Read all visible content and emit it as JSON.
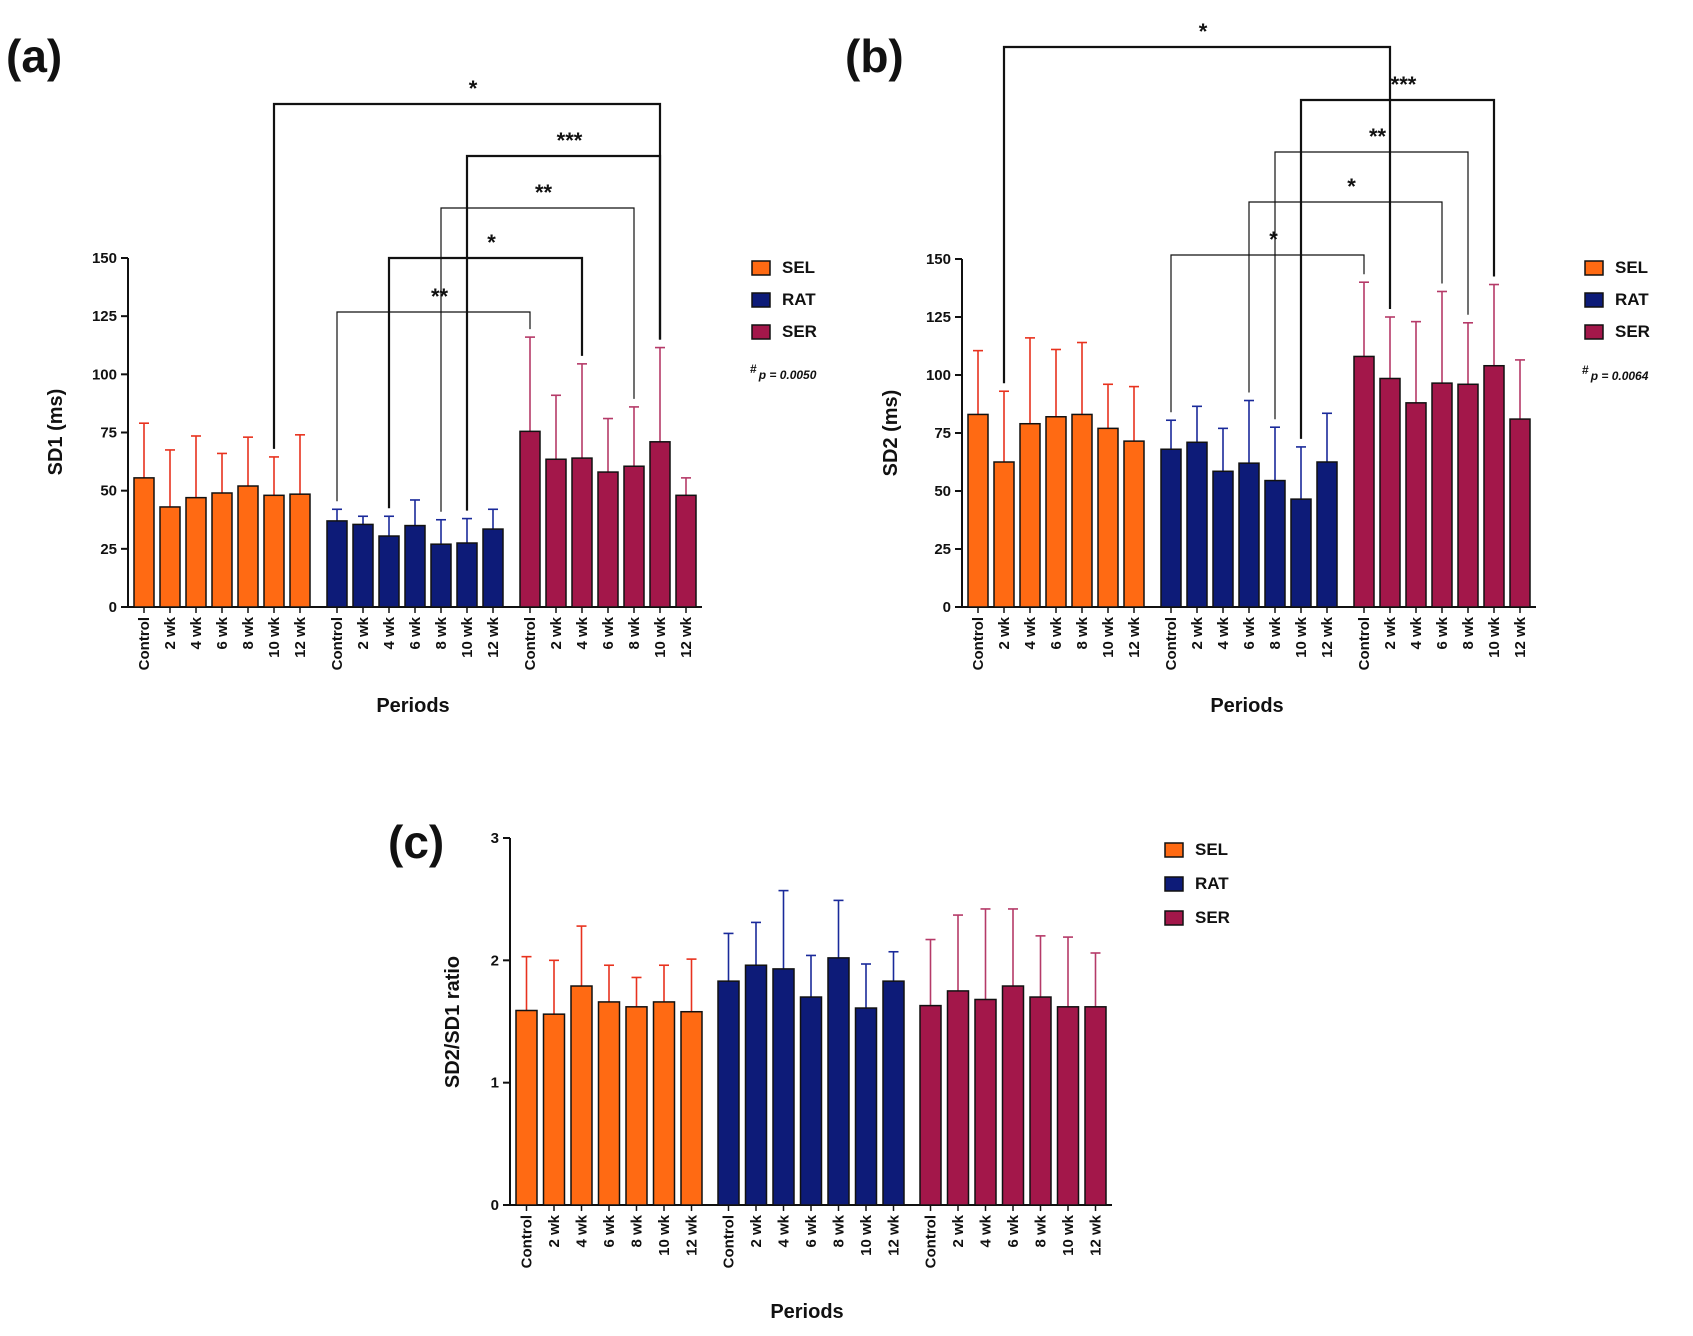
{
  "chart_data": [
    {
      "panel": "(a)",
      "type": "bar",
      "ylabel": "SD1 (ms)",
      "xlabel": "Periods",
      "ylim": [
        0,
        150
      ],
      "yticks": [
        "0",
        "25",
        "50",
        "75",
        "100",
        "125",
        "150"
      ],
      "categories": [
        "Control",
        "2 wk",
        "4 wk",
        "6 wk",
        "8 wk",
        "10 wk",
        "12 wk"
      ],
      "series": [
        {
          "name": "SEL",
          "color": "#ff6a13",
          "errcolor": "#e8321e",
          "values": [
            55.5,
            43,
            47,
            49,
            52,
            48,
            48.5
          ],
          "errors": [
            23.5,
            24.5,
            26.5,
            17,
            21,
            16.5,
            25.5
          ]
        },
        {
          "name": "RAT",
          "color": "#0d1b78",
          "errcolor": "#1a2a9a",
          "values": [
            37,
            35.5,
            30.5,
            35,
            27,
            27.5,
            33.5
          ],
          "errors": [
            5,
            3.5,
            8.5,
            11,
            10.5,
            10.5,
            8.5
          ]
        },
        {
          "name": "SER",
          "color": "#a3174a",
          "errcolor": "#b53a68",
          "values": [
            75.5,
            63.5,
            64,
            58,
            60.5,
            71,
            48
          ],
          "errors": [
            40.5,
            27.5,
            40.5,
            23,
            25.5,
            40.5,
            7.5
          ]
        }
      ],
      "annotations": [
        "**",
        "*",
        "**",
        "***",
        "*"
      ],
      "p_value_text": "p = 0.0050",
      "p_value_symbol": "#"
    },
    {
      "panel": "(b)",
      "type": "bar",
      "ylabel": "SD2 (ms)",
      "xlabel": "Periods",
      "ylim": [
        0,
        150
      ],
      "yticks": [
        "0",
        "25",
        "50",
        "75",
        "100",
        "125",
        "150"
      ],
      "categories": [
        "Control",
        "2 wk",
        "4 wk",
        "6 wk",
        "8 wk",
        "10 wk",
        "12 wk"
      ],
      "series": [
        {
          "name": "SEL",
          "color": "#ff6a13",
          "errcolor": "#e8321e",
          "values": [
            83,
            62.5,
            79,
            82,
            83,
            77,
            71.5
          ],
          "errors": [
            27.5,
            30.5,
            37,
            29,
            31,
            19,
            23.5
          ]
        },
        {
          "name": "RAT",
          "color": "#0d1b78",
          "errcolor": "#1a2a9a",
          "values": [
            68,
            71,
            58.5,
            62,
            54.5,
            46.5,
            62.5
          ],
          "errors": [
            12.5,
            15.5,
            18.5,
            27,
            23,
            22.5,
            21
          ]
        },
        {
          "name": "SER",
          "color": "#a3174a",
          "errcolor": "#b53a68",
          "values": [
            108,
            98.5,
            88,
            96.5,
            96,
            104,
            81
          ],
          "errors": [
            32,
            26.5,
            35,
            39.5,
            26.5,
            35,
            25.5
          ]
        }
      ],
      "annotations": [
        "*",
        "*",
        "**",
        "***",
        "*"
      ],
      "p_value_text": "p = 0.0064",
      "p_value_symbol": "#"
    },
    {
      "panel": "(c)",
      "type": "bar",
      "ylabel": "SD2/SD1 ratio",
      "xlabel": "Periods",
      "ylim": [
        0,
        3
      ],
      "yticks": [
        "0",
        "1",
        "2",
        "3"
      ],
      "categories": [
        "Control",
        "2 wk",
        "4 wk",
        "6 wk",
        "8 wk",
        "10 wk",
        "12 wk"
      ],
      "series": [
        {
          "name": "SEL",
          "color": "#ff6a13",
          "errcolor": "#e8321e",
          "values": [
            1.59,
            1.56,
            1.79,
            1.66,
            1.62,
            1.66,
            1.58
          ],
          "errors": [
            0.44,
            0.44,
            0.49,
            0.3,
            0.24,
            0.3,
            0.43
          ]
        },
        {
          "name": "RAT",
          "color": "#0d1b78",
          "errcolor": "#1a2a9a",
          "values": [
            1.83,
            1.96,
            1.93,
            1.7,
            2.02,
            1.61,
            1.83
          ],
          "errors": [
            0.39,
            0.35,
            0.64,
            0.34,
            0.47,
            0.36,
            0.24
          ]
        },
        {
          "name": "SER",
          "color": "#a3174a",
          "errcolor": "#b53a68",
          "values": [
            1.63,
            1.75,
            1.68,
            1.79,
            1.7,
            1.62,
            1.62
          ],
          "errors": [
            0.54,
            0.62,
            0.74,
            0.63,
            0.5,
            0.57,
            0.44
          ]
        }
      ],
      "annotations": []
    }
  ]
}
